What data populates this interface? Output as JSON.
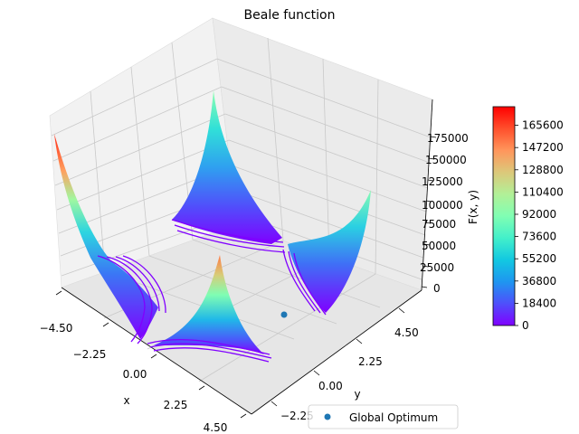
{
  "chart_data": {
    "type": "surface-3d",
    "title": "Beale function",
    "xlabel": "x",
    "ylabel": "y",
    "zlabel": "F(x, y)",
    "xlim": [
      -4.5,
      4.5
    ],
    "ylim": [
      -4.5,
      4.5
    ],
    "zlim": [
      0,
      180000
    ],
    "x_ticks": [
      "−4.50",
      "−2.25",
      "0.00",
      "2.25",
      "4.50"
    ],
    "y_ticks": [
      "−2.25",
      "0.00",
      "2.25",
      "4.50"
    ],
    "z_ticks": [
      "0",
      "25000",
      "50000",
      "75000",
      "100000",
      "125000",
      "150000",
      "175000"
    ],
    "colormap": "rainbow",
    "colorbar": {
      "min": 0,
      "max": 181000,
      "ticks": [
        "0",
        "18400",
        "36800",
        "55200",
        "73600",
        "92000",
        "110400",
        "128800",
        "147200",
        "165600"
      ]
    },
    "global_optimum": {
      "x": 3,
      "y": 0.5,
      "z": 0,
      "color": "#1f77b4"
    },
    "legend": {
      "entries": [
        {
          "label": "Global Optimum",
          "marker": "scatter-dot",
          "color": "#1f77b4"
        }
      ],
      "location": "bottom-right"
    },
    "grid": true
  }
}
